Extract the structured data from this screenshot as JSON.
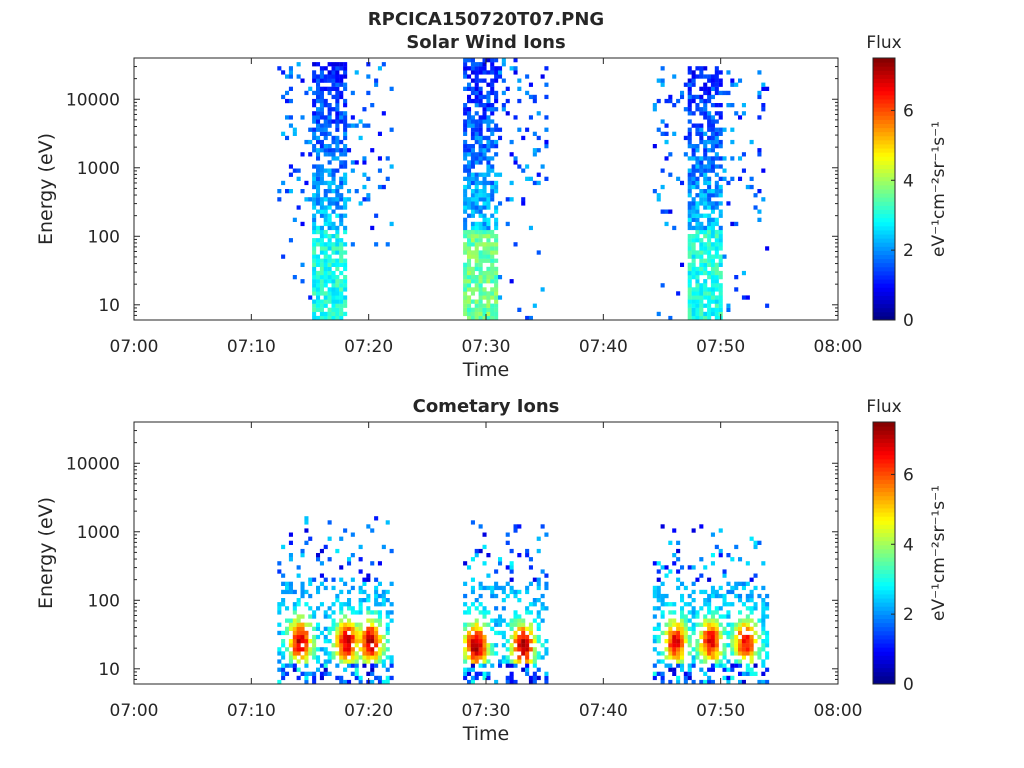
{
  "figure_title": "RPCICA150720T07.PNG",
  "colorbar": {
    "title": "Flux",
    "label": "eV⁻¹cm⁻²sr⁻¹s⁻¹",
    "ticks": [
      "0",
      "2",
      "4",
      "6"
    ],
    "range": [
      0,
      7.5
    ],
    "colormap": "jet"
  },
  "chart_data": [
    {
      "type": "heatmap",
      "title": "Solar Wind Ions",
      "xlabel": "Time",
      "ylabel": "Energy (eV)",
      "x_ticks": [
        "07:00",
        "07:10",
        "07:20",
        "07:30",
        "07:40",
        "07:50",
        "08:00"
      ],
      "y_ticks": [
        "10",
        "100",
        "1000",
        "10000"
      ],
      "x_range": [
        "07:00",
        "08:00"
      ],
      "y_range": [
        6,
        40000
      ],
      "y_scale": "log",
      "flux_range": [
        0,
        7.5
      ],
      "bursts": [
        {
          "start": "07:12",
          "end": "07:22",
          "core_start": "07:15",
          "core_end": "07:18",
          "emin": 6,
          "emax": 35000,
          "low_energy_flux": 3.0,
          "high_energy_flux": 0.6
        },
        {
          "start": "07:28",
          "end": "07:35",
          "core_start": "07:28",
          "core_end": "07:31",
          "emin": 6,
          "emax": 38000,
          "low_energy_flux": 3.6,
          "high_energy_flux": 0.6
        },
        {
          "start": "07:44",
          "end": "07:54",
          "core_start": "07:47",
          "core_end": "07:50",
          "emin": 6,
          "emax": 32000,
          "low_energy_flux": 3.0,
          "high_energy_flux": 0.6
        }
      ]
    },
    {
      "type": "heatmap",
      "title": "Cometary Ions",
      "xlabel": "Time",
      "ylabel": "Energy (eV)",
      "x_ticks": [
        "07:00",
        "07:10",
        "07:20",
        "07:30",
        "07:40",
        "07:50",
        "08:00"
      ],
      "y_ticks": [
        "10",
        "100",
        "1000",
        "10000"
      ],
      "x_range": [
        "07:00",
        "08:00"
      ],
      "y_range": [
        6,
        40000
      ],
      "y_scale": "log",
      "flux_range": [
        0,
        7.5
      ],
      "bursts": [
        {
          "start": "07:12",
          "end": "07:22",
          "emin": 6,
          "emax": 1800,
          "peak_energy": 25,
          "peak_flux": 6.8,
          "peaks_at": [
            "07:14",
            "07:18",
            "07:20"
          ]
        },
        {
          "start": "07:28",
          "end": "07:35",
          "emin": 6,
          "emax": 1500,
          "peak_energy": 22,
          "peak_flux": 7.0,
          "peaks_at": [
            "07:29",
            "07:33"
          ]
        },
        {
          "start": "07:44",
          "end": "07:54",
          "emin": 6,
          "emax": 1300,
          "peak_energy": 25,
          "peak_flux": 6.5,
          "peaks_at": [
            "07:46",
            "07:49",
            "07:52"
          ]
        }
      ]
    }
  ]
}
